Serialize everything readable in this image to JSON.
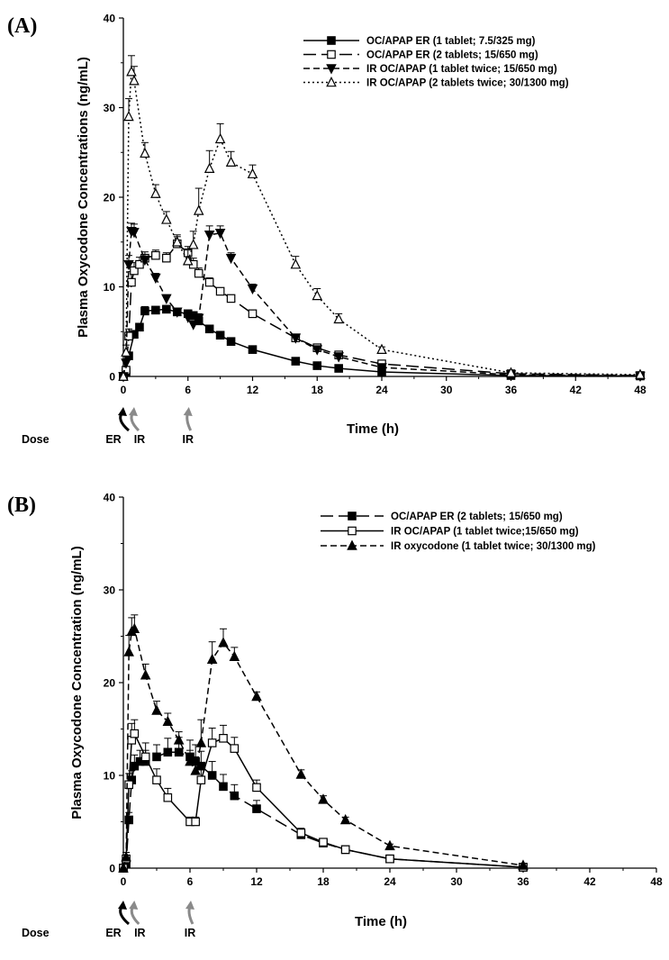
{
  "chart_data": [
    {
      "panel_label": "(A)",
      "type": "line",
      "title": "",
      "xlabel": "Time (h)",
      "ylabel": "Plasma Oxycodone Concentrations (ng/mL)",
      "xlim": [
        0,
        48
      ],
      "ylim": [
        0,
        40
      ],
      "x_ticks": [
        "0",
        "6",
        "12",
        "18",
        "24",
        "30",
        "36",
        "42",
        "48"
      ],
      "y_ticks": [
        "0",
        "10",
        "20",
        "30",
        "40"
      ],
      "grid": false,
      "legend_position": "top-right",
      "dose_labels": [
        "Dose",
        "ER",
        "IR",
        "IR"
      ],
      "series": [
        {
          "name": "OC/APAP ER (1 tablet; 7.5/325 mg)",
          "line_style": "solid",
          "marker": "filled-square",
          "points": [
            [
              0,
              0
            ],
            [
              0.25,
              0.5
            ],
            [
              0.5,
              2.3
            ],
            [
              1,
              4.7
            ],
            [
              1.5,
              5.5
            ],
            [
              2,
              7.3
            ],
            [
              3,
              7.4
            ],
            [
              4,
              7.5
            ],
            [
              5,
              7.2
            ],
            [
              6,
              7.0
            ],
            [
              6.5,
              6.8
            ],
            [
              7,
              6.2
            ],
            [
              8,
              5.3
            ],
            [
              9,
              4.6
            ],
            [
              10,
              3.9
            ],
            [
              12,
              3.0
            ],
            [
              16,
              1.7
            ],
            [
              18,
              1.2
            ],
            [
              20,
              0.9
            ],
            [
              24,
              0.5
            ],
            [
              36,
              0.1
            ],
            [
              48,
              0.05
            ]
          ],
          "errors": [
            0,
            0.2,
            0.4,
            0.4,
            0.4,
            0.5,
            0.4,
            0.4,
            0.4,
            0.4,
            0.4,
            0.4,
            0.3,
            0.3,
            0.3,
            0.2,
            0.2,
            0.1,
            0.1,
            0.1,
            0.05,
            0.03
          ]
        },
        {
          "name": "OC/APAP ER (2 tablets; 15/650 mg)",
          "line_style": "long-dash",
          "marker": "open-square",
          "points": [
            [
              0,
              0
            ],
            [
              0.25,
              0.7
            ],
            [
              0.5,
              4.5
            ],
            [
              0.75,
              10.5
            ],
            [
              1,
              11.8
            ],
            [
              1.5,
              12.5
            ],
            [
              2,
              13.2
            ],
            [
              3,
              13.5
            ],
            [
              4,
              13.2
            ],
            [
              5,
              14.8
            ],
            [
              6,
              13.8
            ],
            [
              6.5,
              12.5
            ],
            [
              7,
              11.5
            ],
            [
              8,
              10.5
            ],
            [
              9,
              9.5
            ],
            [
              10,
              8.7
            ],
            [
              12,
              7.0
            ],
            [
              16,
              4.3
            ],
            [
              18,
              3.2
            ],
            [
              20,
              2.4
            ],
            [
              24,
              1.4
            ],
            [
              36,
              0.3
            ],
            [
              48,
              0.1
            ]
          ],
          "errors": [
            0,
            0.3,
            0.8,
            1.2,
            0.9,
            0.8,
            0.7,
            0.6,
            0.6,
            0.8,
            0.7,
            0.7,
            0.6,
            0.5,
            0.4,
            0.4,
            0.4,
            0.3,
            0.3,
            0.2,
            0.2,
            0.1,
            0.05
          ]
        },
        {
          "name": "IR OC/APAP (1 tablet twice; 15/650 mg)",
          "line_style": "dash",
          "marker": "filled-triangle-down",
          "points": [
            [
              0,
              0
            ],
            [
              0.25,
              1.5
            ],
            [
              0.5,
              12.5
            ],
            [
              0.75,
              16.2
            ],
            [
              1,
              16.1
            ],
            [
              2,
              13.0
            ],
            [
              3,
              11.0
            ],
            [
              4,
              8.7
            ],
            [
              5,
              7.2
            ],
            [
              6,
              6.6
            ],
            [
              6.5,
              5.8
            ],
            [
              7,
              6.5
            ],
            [
              8,
              15.8
            ],
            [
              9,
              16.0
            ],
            [
              10,
              13.2
            ],
            [
              12,
              9.8
            ],
            [
              16,
              4.3
            ],
            [
              18,
              3.0
            ],
            [
              20,
              2.2
            ],
            [
              24,
              1.0
            ],
            [
              36,
              0.2
            ],
            [
              48,
              0.05
            ]
          ],
          "errors": [
            0,
            0.4,
            1.0,
            0.9,
            0.9,
            0.6,
            0.5,
            0.4,
            0.4,
            0.4,
            0.4,
            0.5,
            1.0,
            0.8,
            0.6,
            0.5,
            0.3,
            0.2,
            0.2,
            0.1,
            0.05,
            0.03
          ]
        },
        {
          "name": "IR OC/APAP (2 tablets twice; 30/1300 mg)",
          "line_style": "dotted",
          "marker": "open-triangle-up",
          "points": [
            [
              0,
              0
            ],
            [
              0.25,
              2.7
            ],
            [
              0.5,
              29.0
            ],
            [
              0.75,
              34.0
            ],
            [
              1,
              33.0
            ],
            [
              2,
              24.9
            ],
            [
              3,
              20.4
            ],
            [
              4,
              17.5
            ],
            [
              5,
              15.0
            ],
            [
              6,
              12.9
            ],
            [
              6.5,
              14.7
            ],
            [
              7,
              18.5
            ],
            [
              8,
              23.2
            ],
            [
              9,
              26.5
            ],
            [
              10,
              23.9
            ],
            [
              12,
              22.6
            ],
            [
              16,
              12.5
            ],
            [
              18,
              9.0
            ],
            [
              20,
              6.4
            ],
            [
              24,
              3.0
            ],
            [
              36,
              0.4
            ],
            [
              48,
              0.2
            ]
          ],
          "errors": [
            0,
            0.8,
            2.0,
            1.8,
            1.6,
            1.2,
            1.0,
            0.9,
            0.8,
            1.2,
            1.5,
            2.5,
            2.0,
            1.7,
            1.2,
            1.0,
            0.9,
            0.8,
            0.6,
            0.3,
            0.1,
            0.05
          ]
        }
      ]
    },
    {
      "panel_label": "(B)",
      "type": "line",
      "title": "",
      "xlabel": "Time (h)",
      "ylabel": "Plasma Oxycodone Concentration (ng/mL)",
      "xlim": [
        0,
        48
      ],
      "ylim": [
        0,
        40
      ],
      "x_ticks": [
        "0",
        "6",
        "12",
        "18",
        "24",
        "30",
        "36",
        "42",
        "48"
      ],
      "y_ticks": [
        "0",
        "10",
        "20",
        "30",
        "40"
      ],
      "grid": false,
      "legend_position": "top-right",
      "dose_labels": [
        "Dose",
        "ER",
        "IR",
        "IR"
      ],
      "series": [
        {
          "name": "OC/APAP ER (2 tablets; 15/650 mg)",
          "line_style": "long-dash",
          "marker": "filled-square",
          "points": [
            [
              0,
              0
            ],
            [
              0.25,
              0.5
            ],
            [
              0.5,
              5.2
            ],
            [
              0.75,
              9.5
            ],
            [
              1,
              11.0
            ],
            [
              1.5,
              11.5
            ],
            [
              2,
              11.5
            ],
            [
              3,
              12.0
            ],
            [
              4,
              12.5
            ],
            [
              5,
              12.5
            ],
            [
              6,
              12.0
            ],
            [
              6.5,
              11.5
            ],
            [
              7,
              11.0
            ],
            [
              8,
              10.0
            ],
            [
              9,
              8.8
            ],
            [
              10,
              7.8
            ],
            [
              12,
              6.4
            ],
            [
              16,
              3.6
            ],
            [
              18,
              2.7
            ],
            [
              20,
              2.0
            ],
            [
              24,
              1.0
            ],
            [
              36,
              0.1
            ]
          ],
          "errors": [
            0,
            0.3,
            0.8,
            1.0,
            1.2,
            1.2,
            1.2,
            1.3,
            1.5,
            1.6,
            1.8,
            1.8,
            1.6,
            1.5,
            1.3,
            1.2,
            0.9,
            0.5,
            0.4,
            0.3,
            0.2,
            0.05
          ]
        },
        {
          "name": "IR OC/APAP (1 tablet twice;15/650 mg)",
          "line_style": "solid",
          "marker": "open-square",
          "points": [
            [
              0,
              0
            ],
            [
              0.25,
              1.0
            ],
            [
              0.5,
              9.0
            ],
            [
              0.75,
              13.8
            ],
            [
              1,
              14.5
            ],
            [
              2,
              12.0
            ],
            [
              3,
              9.5
            ],
            [
              4,
              7.6
            ],
            [
              6,
              5.0
            ],
            [
              6.5,
              5.0
            ],
            [
              7,
              9.5
            ],
            [
              8,
              13.5
            ],
            [
              9,
              14.0
            ],
            [
              10,
              12.9
            ],
            [
              12,
              8.7
            ],
            [
              16,
              3.8
            ],
            [
              18,
              2.8
            ],
            [
              20,
              2.0
            ],
            [
              24,
              1.0
            ],
            [
              36,
              0.1
            ]
          ],
          "errors": [
            0,
            0.4,
            1.2,
            1.8,
            1.5,
            1.5,
            1.2,
            1.0,
            0.5,
            0.5,
            1.5,
            1.6,
            1.4,
            1.2,
            0.8,
            0.5,
            0.3,
            0.2,
            0.2,
            0.05
          ]
        },
        {
          "name": "IR oxycodone (1 tablet twice; 30/1300 mg)",
          "line_style": "dash",
          "marker": "filled-triangle-up",
          "points": [
            [
              0,
              0
            ],
            [
              0.25,
              1.2
            ],
            [
              0.5,
              23.3
            ],
            [
              0.75,
              25.5
            ],
            [
              1,
              25.8
            ],
            [
              2,
              20.8
            ],
            [
              3,
              17.0
            ],
            [
              4,
              15.8
            ],
            [
              5,
              13.8
            ],
            [
              6,
              11.5
            ],
            [
              6.5,
              10.5
            ],
            [
              7,
              13.5
            ],
            [
              8,
              22.5
            ],
            [
              9,
              24.3
            ],
            [
              10,
              22.8
            ],
            [
              12,
              18.5
            ],
            [
              16,
              10.1
            ],
            [
              18,
              7.4
            ],
            [
              20,
              5.2
            ],
            [
              24,
              2.4
            ],
            [
              36,
              0.3
            ]
          ],
          "errors": [
            0,
            0.5,
            1.8,
            1.5,
            1.5,
            1.2,
            1.0,
            0.9,
            0.9,
            1.2,
            1.5,
            2.5,
            1.9,
            1.5,
            1.0,
            0.5,
            0.5,
            0.4,
            0.3,
            0.2,
            0.05
          ]
        }
      ]
    }
  ]
}
